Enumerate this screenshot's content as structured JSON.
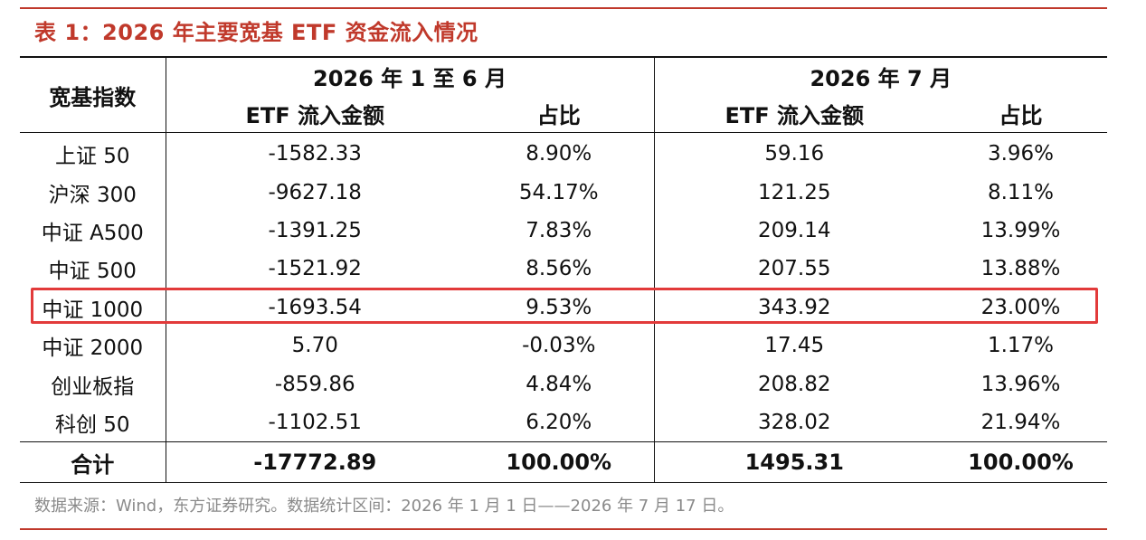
{
  "title": "表 1：2026 年主要宽基 ETF 资金流入情况",
  "table": {
    "index_header": "宽基指数",
    "group1": "2026 年 1 至 6 月",
    "group2": "2026 年 7 月",
    "sub_flow": "ETF 流入金额",
    "sub_share": "占比",
    "rows": [
      {
        "name": "上证 50",
        "h1_flow": "-1582.33",
        "h1_share": "8.90%",
        "jul_flow": "59.16",
        "jul_share": "3.96%"
      },
      {
        "name": "沪深 300",
        "h1_flow": "-9627.18",
        "h1_share": "54.17%",
        "jul_flow": "121.25",
        "jul_share": "8.11%"
      },
      {
        "name": "中证 A500",
        "h1_flow": "-1391.25",
        "h1_share": "7.83%",
        "jul_flow": "209.14",
        "jul_share": "13.99%"
      },
      {
        "name": "中证 500",
        "h1_flow": "-1521.92",
        "h1_share": "8.56%",
        "jul_flow": "207.55",
        "jul_share": "13.88%"
      },
      {
        "name": "中证 1000",
        "h1_flow": "-1693.54",
        "h1_share": "9.53%",
        "jul_flow": "343.92",
        "jul_share": "23.00%"
      },
      {
        "name": "中证 2000",
        "h1_flow": "5.70",
        "h1_share": "-0.03%",
        "jul_flow": "17.45",
        "jul_share": "1.17%"
      },
      {
        "name": "创业板指",
        "h1_flow": "-859.86",
        "h1_share": "4.84%",
        "jul_flow": "208.82",
        "jul_share": "13.96%"
      },
      {
        "name": "科创 50",
        "h1_flow": "-1102.51",
        "h1_share": "6.20%",
        "jul_flow": "328.02",
        "jul_share": "21.94%"
      }
    ],
    "total": {
      "name": "合计",
      "h1_flow": "-17772.89",
      "h1_share": "100.00%",
      "jul_flow": "1495.31",
      "jul_share": "100.00%"
    }
  },
  "highlighted_row": "中证 1000",
  "source": "数据来源：Wind，东方证券研究。数据统计区间：2026 年 1 月 1 日——2026 年 7 月 17 日。",
  "colors": {
    "accent": "#c0392b",
    "highlight": "#e23a3a",
    "source_text": "#8a8a8a"
  }
}
